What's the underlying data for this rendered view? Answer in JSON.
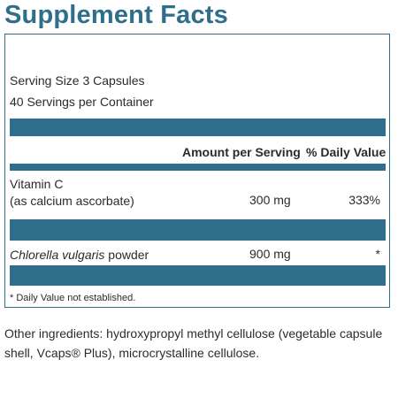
{
  "label": {
    "title": "Supplement Facts",
    "serving_size": "Serving Size 3 Capsules",
    "servings_per_container": "40 Servings per Container",
    "columns": {
      "amount": "Amount per Serving",
      "daily_value": "% Daily Value"
    },
    "rows": [
      {
        "name_line1": "Vitamin C",
        "name_line2": "(as calcium ascorbate)",
        "amount": "300 mg",
        "daily_value": "333%"
      },
      {
        "name_italic": "Chlorella vulgaris",
        "name_rest": " powder",
        "amount": "900 mg",
        "daily_value": "*"
      }
    ],
    "footnote": "* Daily Value not established."
  },
  "other_ingredients": "Other ingredients: hydroxypropyl methyl cellulose (vegetable capsule shell, Vcaps® Plus), microcrystalline cellulose.",
  "colors": {
    "accent": "#2f6f8b",
    "text": "#2b2b2b",
    "background": "#ffffff"
  }
}
